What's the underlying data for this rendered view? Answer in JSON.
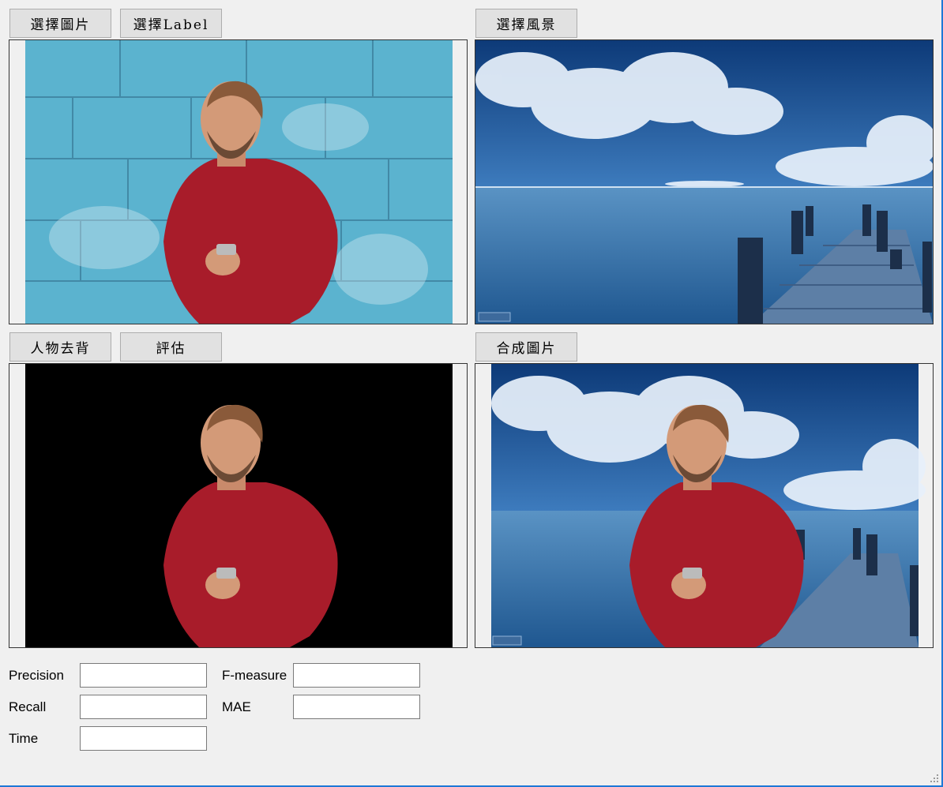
{
  "buttons": {
    "choose_image": "選擇圖片",
    "choose_label": "選擇Label",
    "choose_scenery": "選擇風景",
    "remove_bg": "人物去背",
    "evaluate": "評估",
    "compose": "合成圖片"
  },
  "metrics": {
    "precision_label": "Precision",
    "recall_label": "Recall",
    "time_label": "Time",
    "fmeasure_label": "F-measure",
    "mae_label": "MAE",
    "precision_value": "",
    "recall_value": "",
    "time_value": "",
    "fmeasure_value": "",
    "mae_value": ""
  },
  "colors": {
    "wall": "#5bb3cf",
    "sweater": "#a81c2a",
    "sky_dark": "#0d3a78",
    "sea": "#2c6aa3"
  }
}
